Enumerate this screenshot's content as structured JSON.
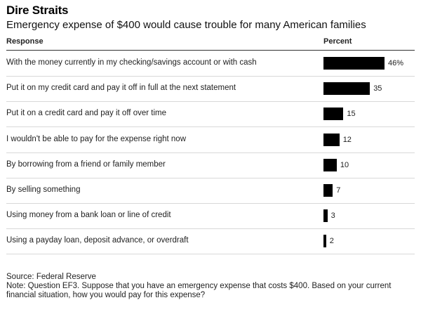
{
  "title": "Dire Straits",
  "subtitle": "Emergency expense of $400 would cause trouble for many American families",
  "header": {
    "response": "Response",
    "percent": "Percent"
  },
  "chart_data": {
    "type": "bar",
    "orientation": "horizontal",
    "title": "Dire Straits",
    "subtitle": "Emergency expense of $400 would cause trouble for many American families",
    "categories": [
      "With the money currently in my checking/savings account or with cash",
      "Put it on my credit card and pay it off in full at the next statement",
      "Put it on a credit card and pay it off over time",
      "I wouldn't be able to pay for the expense right now",
      "By borrowing from a friend or family member",
      "By selling something",
      "Using money from a bank loan or line of credit",
      "Using a payday loan, deposit advance, or overdraft"
    ],
    "values": [
      46,
      35,
      15,
      12,
      10,
      7,
      3,
      2
    ],
    "value_labels": [
      "46%",
      "35",
      "15",
      "12",
      "10",
      "7",
      "3",
      "2"
    ],
    "xlim": [
      0,
      46
    ],
    "grid": false
  },
  "source": "Source: Federal Reserve",
  "note": "Note: Question EF3. Suppose that you have an emergency expense that costs $400. Based on your current financial situation, how you would pay for this expense?"
}
